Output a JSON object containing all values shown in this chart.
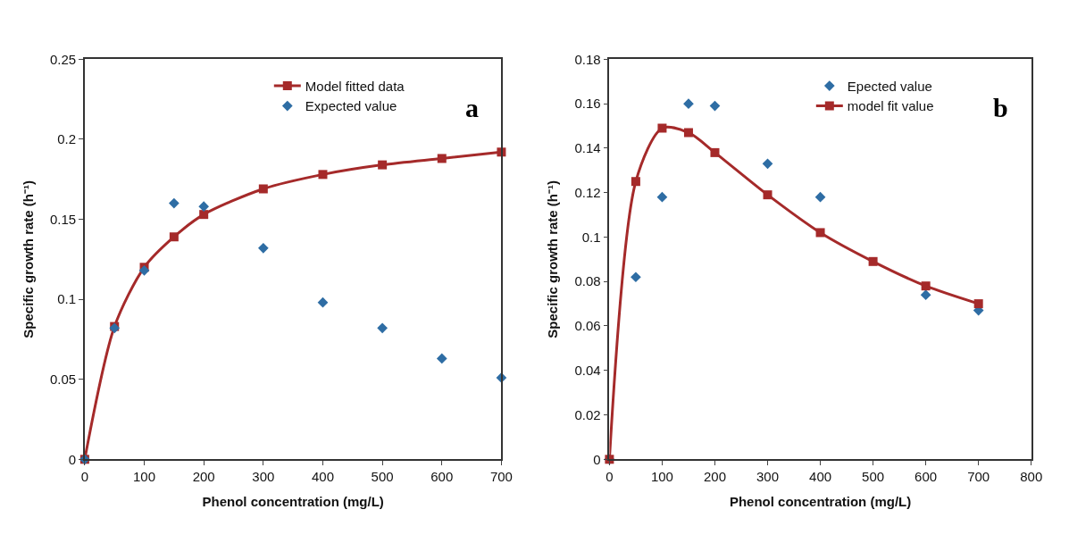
{
  "chart_data": [
    {
      "type": "line",
      "xlabel": "Phenol concentration (mg/L)",
      "ylabel": "Specific growth rate (h⁻¹)",
      "annotations": [
        "a"
      ],
      "x": [
        0,
        50,
        100,
        150,
        200,
        300,
        400,
        500,
        600,
        700
      ],
      "xlim": [
        0,
        700
      ],
      "xticks": [
        0,
        100,
        200,
        300,
        400,
        500,
        600,
        700
      ],
      "ylim": [
        0,
        0.25
      ],
      "yticks": [
        0,
        0.05,
        0.1,
        0.15,
        0.2,
        0.25
      ],
      "legend": "top right",
      "series": [
        {
          "name": "Model fitted data",
          "marker": "square",
          "line_style": "solid",
          "color": "#a52a2a",
          "values": [
            0,
            0.083,
            0.12,
            0.139,
            0.153,
            0.169,
            0.178,
            0.184,
            0.188,
            0.192
          ]
        },
        {
          "name": "Expected value",
          "type": "scatter",
          "marker": "diamond",
          "color": "#2e6da4",
          "values": [
            0,
            0.082,
            0.118,
            0.16,
            0.158,
            0.132,
            0.098,
            0.082,
            0.063,
            0.051
          ]
        }
      ]
    },
    {
      "type": "line",
      "xlabel": "Phenol concentration (mg/L)",
      "ylabel": "Specific growth rate (h⁻¹)",
      "annotations": [
        "b"
      ],
      "x": [
        0,
        50,
        100,
        150,
        200,
        300,
        400,
        500,
        600,
        700
      ],
      "xlim": [
        0,
        800
      ],
      "xticks": [
        0,
        100,
        200,
        300,
        400,
        500,
        600,
        700,
        800
      ],
      "ylim": [
        0,
        0.18
      ],
      "yticks": [
        0,
        0.02,
        0.04,
        0.06,
        0.08,
        0.1,
        0.12,
        0.14,
        0.16,
        0.18
      ],
      "legend": "top right",
      "series": [
        {
          "name": "Epected value",
          "type": "scatter",
          "marker": "diamond",
          "color": "#2e6da4",
          "values": [
            0,
            0.082,
            0.118,
            0.16,
            0.159,
            0.133,
            0.118,
            null,
            0.074,
            0.067
          ]
        },
        {
          "name": "model fit value",
          "marker": "square",
          "line_style": "solid",
          "color": "#a52a2a",
          "values": [
            0,
            0.125,
            0.149,
            0.147,
            0.138,
            0.119,
            0.102,
            0.089,
            0.078,
            0.07
          ]
        }
      ]
    }
  ]
}
